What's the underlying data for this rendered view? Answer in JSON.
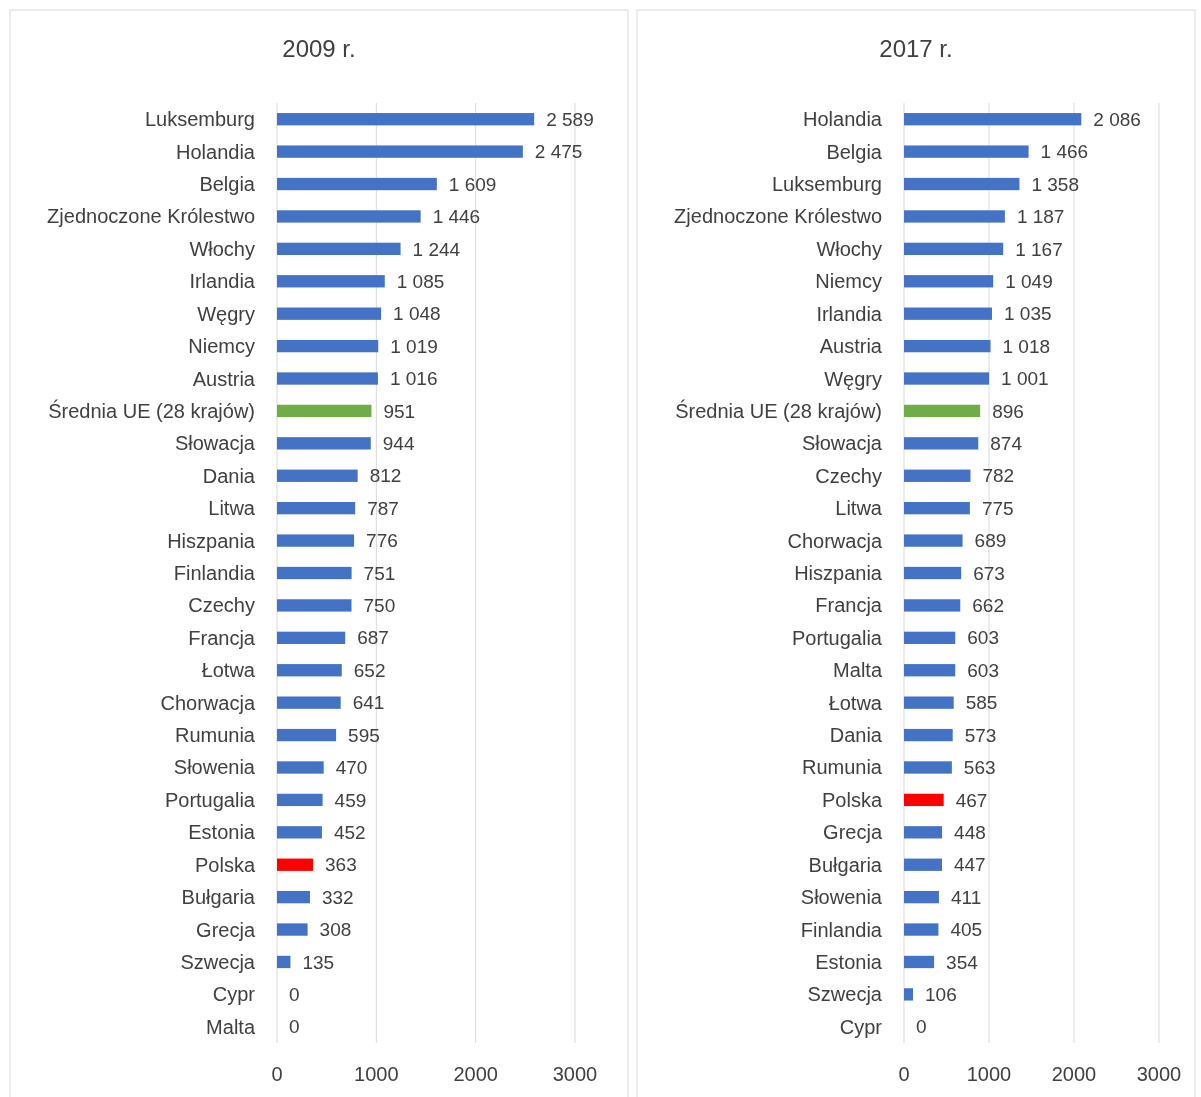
{
  "chart_data": [
    {
      "type": "bar",
      "orientation": "horizontal",
      "title": "2009 r.",
      "categories": [
        "Luksemburg",
        "Holandia",
        "Belgia",
        "Zjednoczone Królestwo",
        "Włochy",
        "Irlandia",
        "Węgry",
        "Niemcy",
        "Austria",
        "Średnia UE (28 krajów)",
        "Słowacja",
        "Dania",
        "Litwa",
        "Hiszpania",
        "Finlandia",
        "Czechy",
        "Francja",
        "Łotwa",
        "Chorwacja",
        "Rumunia",
        "Słowenia",
        "Portugalia",
        "Estonia",
        "Polska",
        "Bułgaria",
        "Grecja",
        "Szwecja",
        "Cypr",
        "Malta"
      ],
      "values": [
        2589,
        2475,
        1609,
        1446,
        1244,
        1085,
        1048,
        1019,
        1016,
        951,
        944,
        812,
        787,
        776,
        751,
        750,
        687,
        652,
        641,
        595,
        470,
        459,
        452,
        363,
        332,
        308,
        135,
        0,
        0
      ],
      "value_labels": [
        "2 589",
        "2 475",
        "1 609",
        "1 446",
        "1 244",
        "1 085",
        "1 048",
        "1 019",
        "1 016",
        "951",
        "944",
        "812",
        "787",
        "776",
        "751",
        "750",
        "687",
        "652",
        "641",
        "595",
        "470",
        "459",
        "452",
        "363",
        "332",
        "308",
        "135",
        "0",
        "0"
      ],
      "colors": [
        "#4472c4",
        "#4472c4",
        "#4472c4",
        "#4472c4",
        "#4472c4",
        "#4472c4",
        "#4472c4",
        "#4472c4",
        "#4472c4",
        "#70ad47",
        "#4472c4",
        "#4472c4",
        "#4472c4",
        "#4472c4",
        "#4472c4",
        "#4472c4",
        "#4472c4",
        "#4472c4",
        "#4472c4",
        "#4472c4",
        "#4472c4",
        "#4472c4",
        "#4472c4",
        "#ff0000",
        "#4472c4",
        "#4472c4",
        "#4472c4",
        "#4472c4",
        "#4472c4"
      ],
      "xlim": [
        0,
        3000
      ],
      "xticks": [
        0,
        1000,
        2000,
        3000
      ],
      "grid": "x"
    },
    {
      "type": "bar",
      "orientation": "horizontal",
      "title": "2017 r.",
      "categories": [
        "Holandia",
        "Belgia",
        "Luksemburg",
        "Zjednoczone Królestwo",
        "Włochy",
        "Niemcy",
        "Irlandia",
        "Austria",
        "Węgry",
        "Średnia UE (28 krajów)",
        "Słowacja",
        "Czechy",
        "Litwa",
        "Chorwacja",
        "Hiszpania",
        "Francja",
        "Portugalia",
        "Malta",
        "Łotwa",
        "Dania",
        "Rumunia",
        "Polska",
        "Grecja",
        "Bułgaria",
        "Słowenia",
        "Finlandia",
        "Estonia",
        "Szwecja",
        "Cypr"
      ],
      "values": [
        2086,
        1466,
        1358,
        1187,
        1167,
        1049,
        1035,
        1018,
        1001,
        896,
        874,
        782,
        775,
        689,
        673,
        662,
        603,
        603,
        585,
        573,
        563,
        467,
        448,
        447,
        411,
        405,
        354,
        106,
        0
      ],
      "value_labels": [
        "2 086",
        "1 466",
        "1 358",
        "1 187",
        "1 167",
        "1 049",
        "1 035",
        "1 018",
        "1 001",
        "896",
        "874",
        "782",
        "775",
        "689",
        "673",
        "662",
        "603",
        "603",
        "585",
        "573",
        "563",
        "467",
        "448",
        "447",
        "411",
        "405",
        "354",
        "106",
        "0"
      ],
      "colors": [
        "#4472c4",
        "#4472c4",
        "#4472c4",
        "#4472c4",
        "#4472c4",
        "#4472c4",
        "#4472c4",
        "#4472c4",
        "#4472c4",
        "#70ad47",
        "#4472c4",
        "#4472c4",
        "#4472c4",
        "#4472c4",
        "#4472c4",
        "#4472c4",
        "#4472c4",
        "#4472c4",
        "#4472c4",
        "#4472c4",
        "#4472c4",
        "#ff0000",
        "#4472c4",
        "#4472c4",
        "#4472c4",
        "#4472c4",
        "#4472c4",
        "#4472c4",
        "#4472c4"
      ],
      "xlim": [
        0,
        3000
      ],
      "xticks": [
        0,
        1000,
        2000,
        3000
      ],
      "grid": "x"
    }
  ]
}
